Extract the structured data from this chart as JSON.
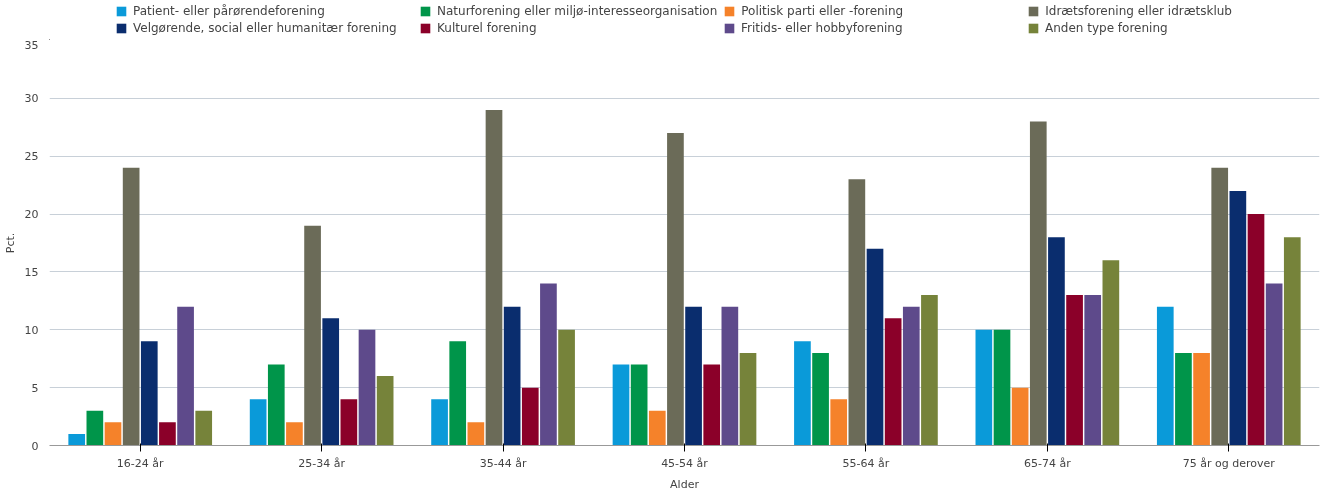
{
  "chart_data": {
    "type": "bar",
    "xlabel": "Alder",
    "ylabel": "Pct.",
    "categories": [
      "16-24 år",
      "25-34 år",
      "35-44 år",
      "45-54 år",
      "55-64 år",
      "65-74 år",
      "75 år og derover"
    ],
    "series": [
      {
        "name": "Patient- eller pårørendeforening",
        "color": "#0a9ad9",
        "values": [
          1,
          4,
          4,
          7,
          9,
          10,
          12
        ]
      },
      {
        "name": "Naturforening eller miljø-interesseorganisation",
        "color": "#00954a",
        "values": [
          3,
          7,
          9,
          7,
          8,
          10,
          8
        ]
      },
      {
        "name": "Politisk parti eller -forening",
        "color": "#f5822a",
        "values": [
          2,
          2,
          2,
          3,
          4,
          5,
          8
        ]
      },
      {
        "name": "Idrætsforening eller idrætsklub",
        "color": "#6b6b58",
        "values": [
          24,
          19,
          29,
          27,
          23,
          28,
          24
        ]
      },
      {
        "name": "Velgørende, social eller humanitær forening",
        "color": "#0a2d6e",
        "values": [
          9,
          11,
          12,
          12,
          17,
          18,
          22
        ]
      },
      {
        "name": "Kulturel forening",
        "color": "#8b0029",
        "values": [
          2,
          4,
          5,
          7,
          11,
          13,
          20
        ]
      },
      {
        "name": "Fritids- eller hobbyforening",
        "color": "#5e4a8b",
        "values": [
          12,
          10,
          14,
          12,
          12,
          13,
          14
        ]
      },
      {
        "name": "Anden type forening",
        "color": "#76833a",
        "values": [
          3,
          6,
          10,
          8,
          13,
          16,
          18
        ]
      }
    ],
    "ylim": [
      0,
      35
    ],
    "yticks": [
      0,
      5,
      10,
      15,
      20,
      25,
      30,
      35
    ],
    "grid": "y",
    "legend": "top"
  }
}
